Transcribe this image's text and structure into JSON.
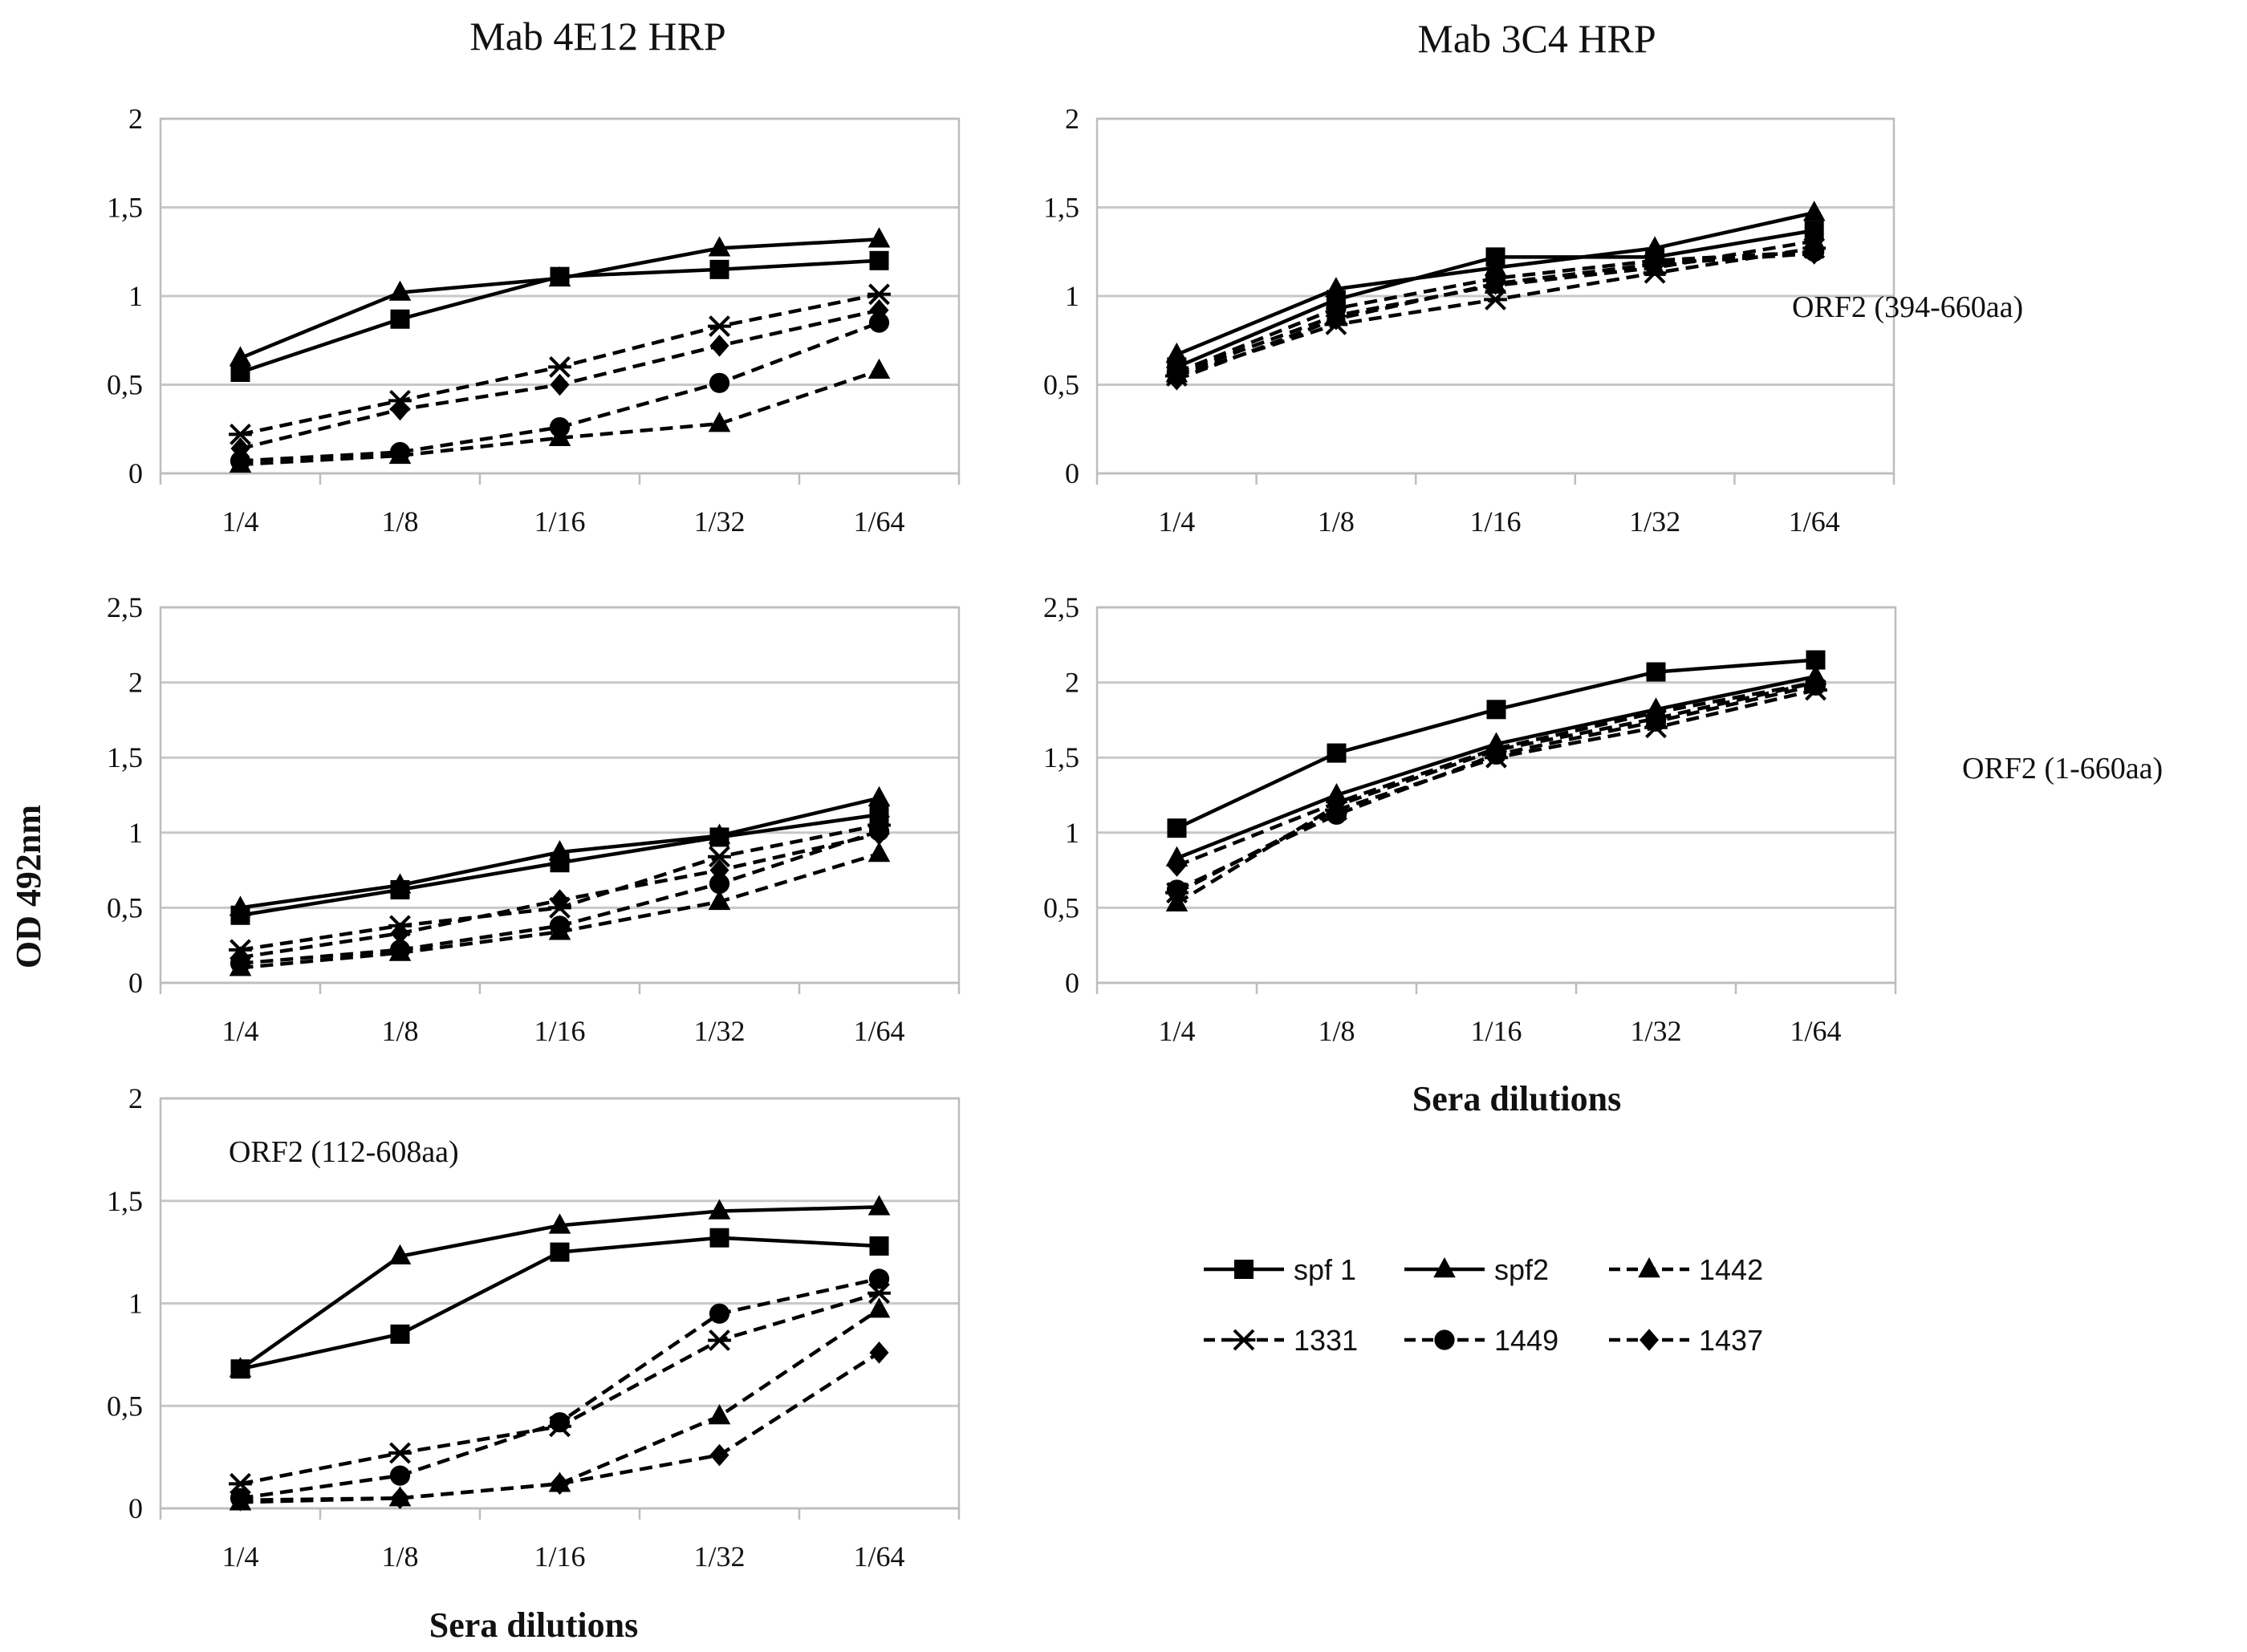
{
  "figure": {
    "column_titles": [
      "Mab 4E12 HRP",
      "Mab 3C4 HRP"
    ],
    "ylabel": "OD 492nm",
    "xlabel": "Sera dilutions",
    "annotations": {
      "row1": "ORF2 (394-660aa)",
      "row2": "ORF2 (1-660aa)",
      "row3": "ORF2 (112-608aa)"
    }
  },
  "legend": [
    {
      "name": "spf 1",
      "marker": "square",
      "dash": false
    },
    {
      "name": "spf2",
      "marker": "triangle",
      "dash": false
    },
    {
      "name": "1442",
      "marker": "triangle",
      "dash": true
    },
    {
      "name": "1331",
      "marker": "x",
      "dash": true
    },
    {
      "name": "1449",
      "marker": "circle",
      "dash": true
    },
    {
      "name": "1437",
      "marker": "diamond",
      "dash": true
    }
  ],
  "chart_data": [
    {
      "type": "line",
      "title": "Mab 4E12 HRP",
      "annotation": "",
      "categories": [
        "1/4",
        "1/8",
        "1/16",
        "1/32",
        "1/64"
      ],
      "ylim": [
        0,
        2
      ],
      "yticks": [
        "0",
        "0,5",
        "1",
        "1,5",
        "2"
      ],
      "series": [
        {
          "name": "spf 1",
          "values": [
            0.57,
            0.87,
            1.11,
            1.15,
            1.2
          ]
        },
        {
          "name": "spf2",
          "values": [
            0.65,
            1.02,
            1.1,
            1.27,
            1.32
          ]
        },
        {
          "name": "1442",
          "values": [
            0.05,
            0.1,
            0.2,
            0.28,
            0.58
          ]
        },
        {
          "name": "1331",
          "values": [
            0.22,
            0.41,
            0.6,
            0.83,
            1.01
          ]
        },
        {
          "name": "1449",
          "values": [
            0.07,
            0.12,
            0.26,
            0.51,
            0.85
          ]
        },
        {
          "name": "1437",
          "values": [
            0.14,
            0.36,
            0.5,
            0.72,
            0.92
          ]
        }
      ]
    },
    {
      "type": "line",
      "title": "Mab 3C4 HRP",
      "annotation": "ORF2 (394-660aa)",
      "categories": [
        "1/4",
        "1/8",
        "1/16",
        "1/32",
        "1/64"
      ],
      "ylim": [
        0,
        2
      ],
      "yticks": [
        "0",
        "0,5",
        "1",
        "1,5",
        "2"
      ],
      "series": [
        {
          "name": "spf 1",
          "values": [
            0.6,
            0.98,
            1.22,
            1.22,
            1.37
          ]
        },
        {
          "name": "spf2",
          "values": [
            0.67,
            1.04,
            1.16,
            1.27,
            1.47
          ]
        },
        {
          "name": "1442",
          "values": [
            0.56,
            0.89,
            1.06,
            1.16,
            1.31
          ]
        },
        {
          "name": "1331",
          "values": [
            0.55,
            0.84,
            0.98,
            1.13,
            1.27
          ]
        },
        {
          "name": "1449",
          "values": [
            0.57,
            0.93,
            1.1,
            1.2,
            1.25
          ]
        },
        {
          "name": "1437",
          "values": [
            0.53,
            0.87,
            1.07,
            1.18,
            1.24
          ]
        }
      ]
    },
    {
      "type": "line",
      "title": "",
      "annotation": "",
      "categories": [
        "1/4",
        "1/8",
        "1/16",
        "1/32",
        "1/64"
      ],
      "ylim": [
        0,
        2.5
      ],
      "yticks": [
        "0",
        "0,5",
        "1",
        "1,5",
        "2",
        "2,5"
      ],
      "series": [
        {
          "name": "spf 1",
          "values": [
            0.45,
            0.62,
            0.8,
            0.97,
            1.12
          ]
        },
        {
          "name": "spf2",
          "values": [
            0.5,
            0.65,
            0.87,
            0.98,
            1.23
          ]
        },
        {
          "name": "1442",
          "values": [
            0.1,
            0.2,
            0.34,
            0.54,
            0.86
          ]
        },
        {
          "name": "1331",
          "values": [
            0.22,
            0.38,
            0.5,
            0.84,
            1.05
          ]
        },
        {
          "name": "1449",
          "values": [
            0.13,
            0.22,
            0.38,
            0.66,
            1.01
          ]
        },
        {
          "name": "1437",
          "values": [
            0.17,
            0.33,
            0.55,
            0.75,
            0.99
          ]
        }
      ]
    },
    {
      "type": "line",
      "title": "",
      "annotation": "ORF2 (1-660aa)",
      "categories": [
        "1/4",
        "1/8",
        "1/16",
        "1/32",
        "1/64"
      ],
      "ylim": [
        0,
        2.5
      ],
      "yticks": [
        "0",
        "0,5",
        "1",
        "1,5",
        "2",
        "2,5"
      ],
      "series": [
        {
          "name": "spf 1",
          "values": [
            1.03,
            1.53,
            1.82,
            2.07,
            2.15
          ]
        },
        {
          "name": "spf2",
          "values": [
            0.83,
            1.25,
            1.59,
            1.82,
            2.04
          ]
        },
        {
          "name": "1442",
          "values": [
            0.53,
            1.18,
            1.55,
            1.76,
            2.0
          ]
        },
        {
          "name": "1331",
          "values": [
            0.6,
            1.15,
            1.5,
            1.7,
            1.95
          ]
        },
        {
          "name": "1449",
          "values": [
            0.62,
            1.12,
            1.52,
            1.74,
            1.98
          ]
        },
        {
          "name": "1437",
          "values": [
            0.78,
            1.2,
            1.56,
            1.8,
            2.0
          ]
        }
      ]
    },
    {
      "type": "line",
      "title": "",
      "annotation": "ORF2 (112-608aa)",
      "categories": [
        "1/4",
        "1/8",
        "1/16",
        "1/32",
        "1/64"
      ],
      "ylim": [
        0,
        2
      ],
      "yticks": [
        "0",
        "0,5",
        "1",
        "1,5",
        "2"
      ],
      "series": [
        {
          "name": "spf 1",
          "values": [
            0.68,
            0.85,
            1.25,
            1.32,
            1.28
          ]
        },
        {
          "name": "spf2",
          "values": [
            0.68,
            1.23,
            1.38,
            1.45,
            1.47
          ]
        },
        {
          "name": "1442",
          "values": [
            0.03,
            0.05,
            0.12,
            0.45,
            0.97
          ]
        },
        {
          "name": "1331",
          "values": [
            0.12,
            0.27,
            0.4,
            0.82,
            1.05
          ]
        },
        {
          "name": "1449",
          "values": [
            0.05,
            0.16,
            0.42,
            0.95,
            1.12
          ]
        },
        {
          "name": "1437",
          "values": [
            0.04,
            0.05,
            0.12,
            0.26,
            0.76
          ]
        }
      ]
    }
  ]
}
